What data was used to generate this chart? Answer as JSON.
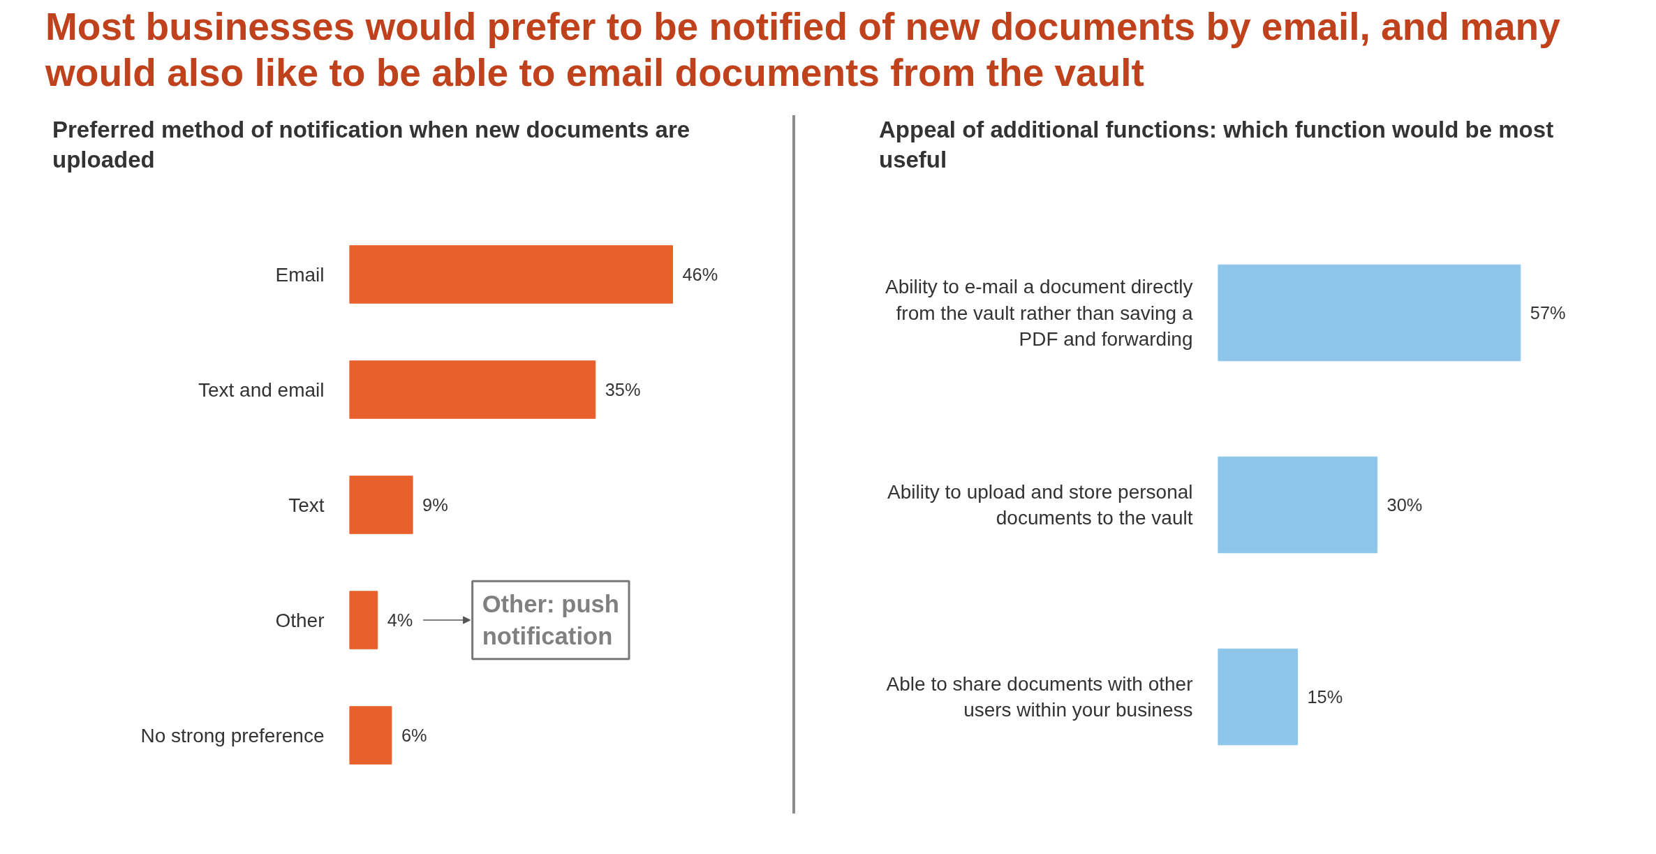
{
  "chart_data": [
    {
      "type": "bar",
      "orientation": "horizontal",
      "title": "Most businesses would prefer to be notified of new documents by email, and many would also like to be able to email documents from the vault",
      "subtitle": "Preferred method of notification when new documents are uploaded",
      "categories": [
        "Email",
        "Text and email",
        "Text",
        "Other",
        "No strong preference"
      ],
      "values": [
        46,
        35,
        9,
        4,
        6
      ],
      "color": "#e8612c",
      "value_labels": [
        "46%",
        "35%",
        "9%",
        "4%",
        "6%"
      ],
      "annotations": [
        "Other: push notification"
      ]
    },
    {
      "type": "bar",
      "orientation": "horizontal",
      "title": "Appeal of additional functions: which function would be most useful",
      "categories": [
        "Ability to e-mail a document directly from the vault rather than saving a PDF and forwarding",
        "Ability to upload and store personal documents to the vault",
        "Able to share documents with other users within your business"
      ],
      "values": [
        57,
        30,
        15
      ],
      "color": "#8ec6ea",
      "value_labels": [
        "57%",
        "30%",
        "15%"
      ]
    }
  ]
}
